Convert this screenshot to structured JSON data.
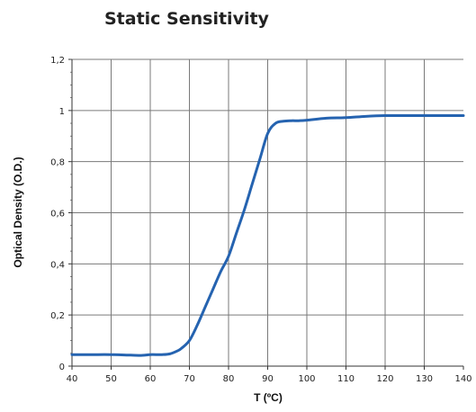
{
  "chart_data": {
    "type": "line",
    "title": "Static Sensitivity",
    "xlabel": "T (ºC)",
    "ylabel": "Optical Density (O.D.)",
    "xlim": [
      40,
      140
    ],
    "ylim": [
      0,
      1.2
    ],
    "xticks": [
      "40",
      "50",
      "60",
      "70",
      "80",
      "90",
      "100",
      "110",
      "120",
      "130",
      "140"
    ],
    "yticks": [
      "0",
      "0,2",
      "0,4",
      "0,6",
      "0,8",
      "1",
      "1,2"
    ],
    "grid": true,
    "series": [
      {
        "color": "#2563b0",
        "x": [
          40,
          45,
          50,
          55,
          58,
          60,
          63,
          65,
          67,
          68,
          70,
          72,
          74,
          76,
          78,
          80,
          82,
          84,
          86,
          88,
          90,
          92,
          94,
          96,
          98,
          100,
          105,
          110,
          115,
          120,
          125,
          130,
          135,
          140
        ],
        "y": [
          0.045,
          0.045,
          0.045,
          0.043,
          0.042,
          0.045,
          0.045,
          0.048,
          0.06,
          0.07,
          0.1,
          0.16,
          0.23,
          0.3,
          0.37,
          0.43,
          0.52,
          0.61,
          0.71,
          0.81,
          0.91,
          0.95,
          0.958,
          0.96,
          0.96,
          0.962,
          0.97,
          0.972,
          0.977,
          0.98,
          0.98,
          0.98,
          0.98,
          0.98
        ]
      }
    ]
  }
}
